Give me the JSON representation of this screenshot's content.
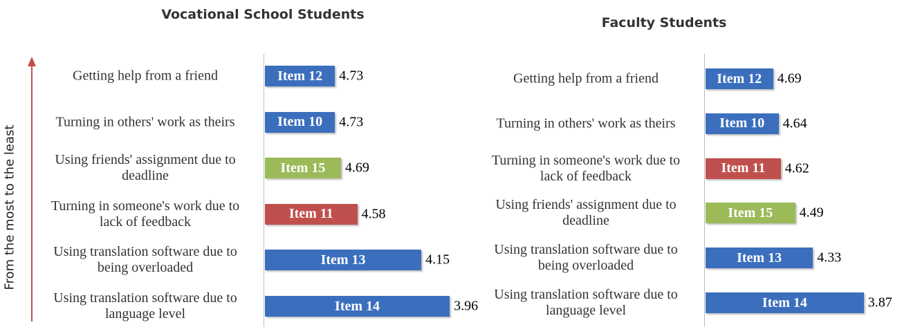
{
  "axis_label": "From the most to the least",
  "chart_data": [
    {
      "type": "bar",
      "orientation": "horizontal",
      "title": "Vocational School Students",
      "categories": [
        "Getting help from a friend",
        "Turning in others' work as theirs",
        "Using friends' assignment due to deadline",
        "Turning in someone's work due to lack of feedback",
        "Using translation software due to being overloaded",
        "Using translation software due to language level"
      ],
      "items": [
        "Item 12",
        "Item 10",
        "Item 15",
        "Item 11",
        "Item 13",
        "Item 14"
      ],
      "values": [
        4.73,
        4.73,
        4.69,
        4.58,
        4.15,
        3.96
      ],
      "colors": [
        "#3b6fbd",
        "#3b6fbd",
        "#9bbb59",
        "#c0504d",
        "#3b6fbd",
        "#3b6fbd"
      ],
      "xlim": [
        5.2,
        3.9
      ]
    },
    {
      "type": "bar",
      "orientation": "horizontal",
      "title": "Faculty Students",
      "categories": [
        "Getting help from a friend",
        "Turning in others' work as theirs",
        "Turning in someone's work due to lack of feedback",
        "Using friends' assignment due to deadline",
        "Using translation software due to being overloaded",
        "Using translation software due to language level"
      ],
      "items": [
        "Item 12",
        "Item 10",
        "Item 11",
        "Item 15",
        "Item 13",
        "Item 14"
      ],
      "values": [
        4.69,
        4.64,
        4.62,
        4.49,
        4.33,
        3.87
      ],
      "colors": [
        "#3b6fbd",
        "#3b6fbd",
        "#c0504d",
        "#9bbb59",
        "#3b6fbd",
        "#3b6fbd"
      ],
      "xlim": [
        5.3,
        3.8
      ]
    }
  ]
}
